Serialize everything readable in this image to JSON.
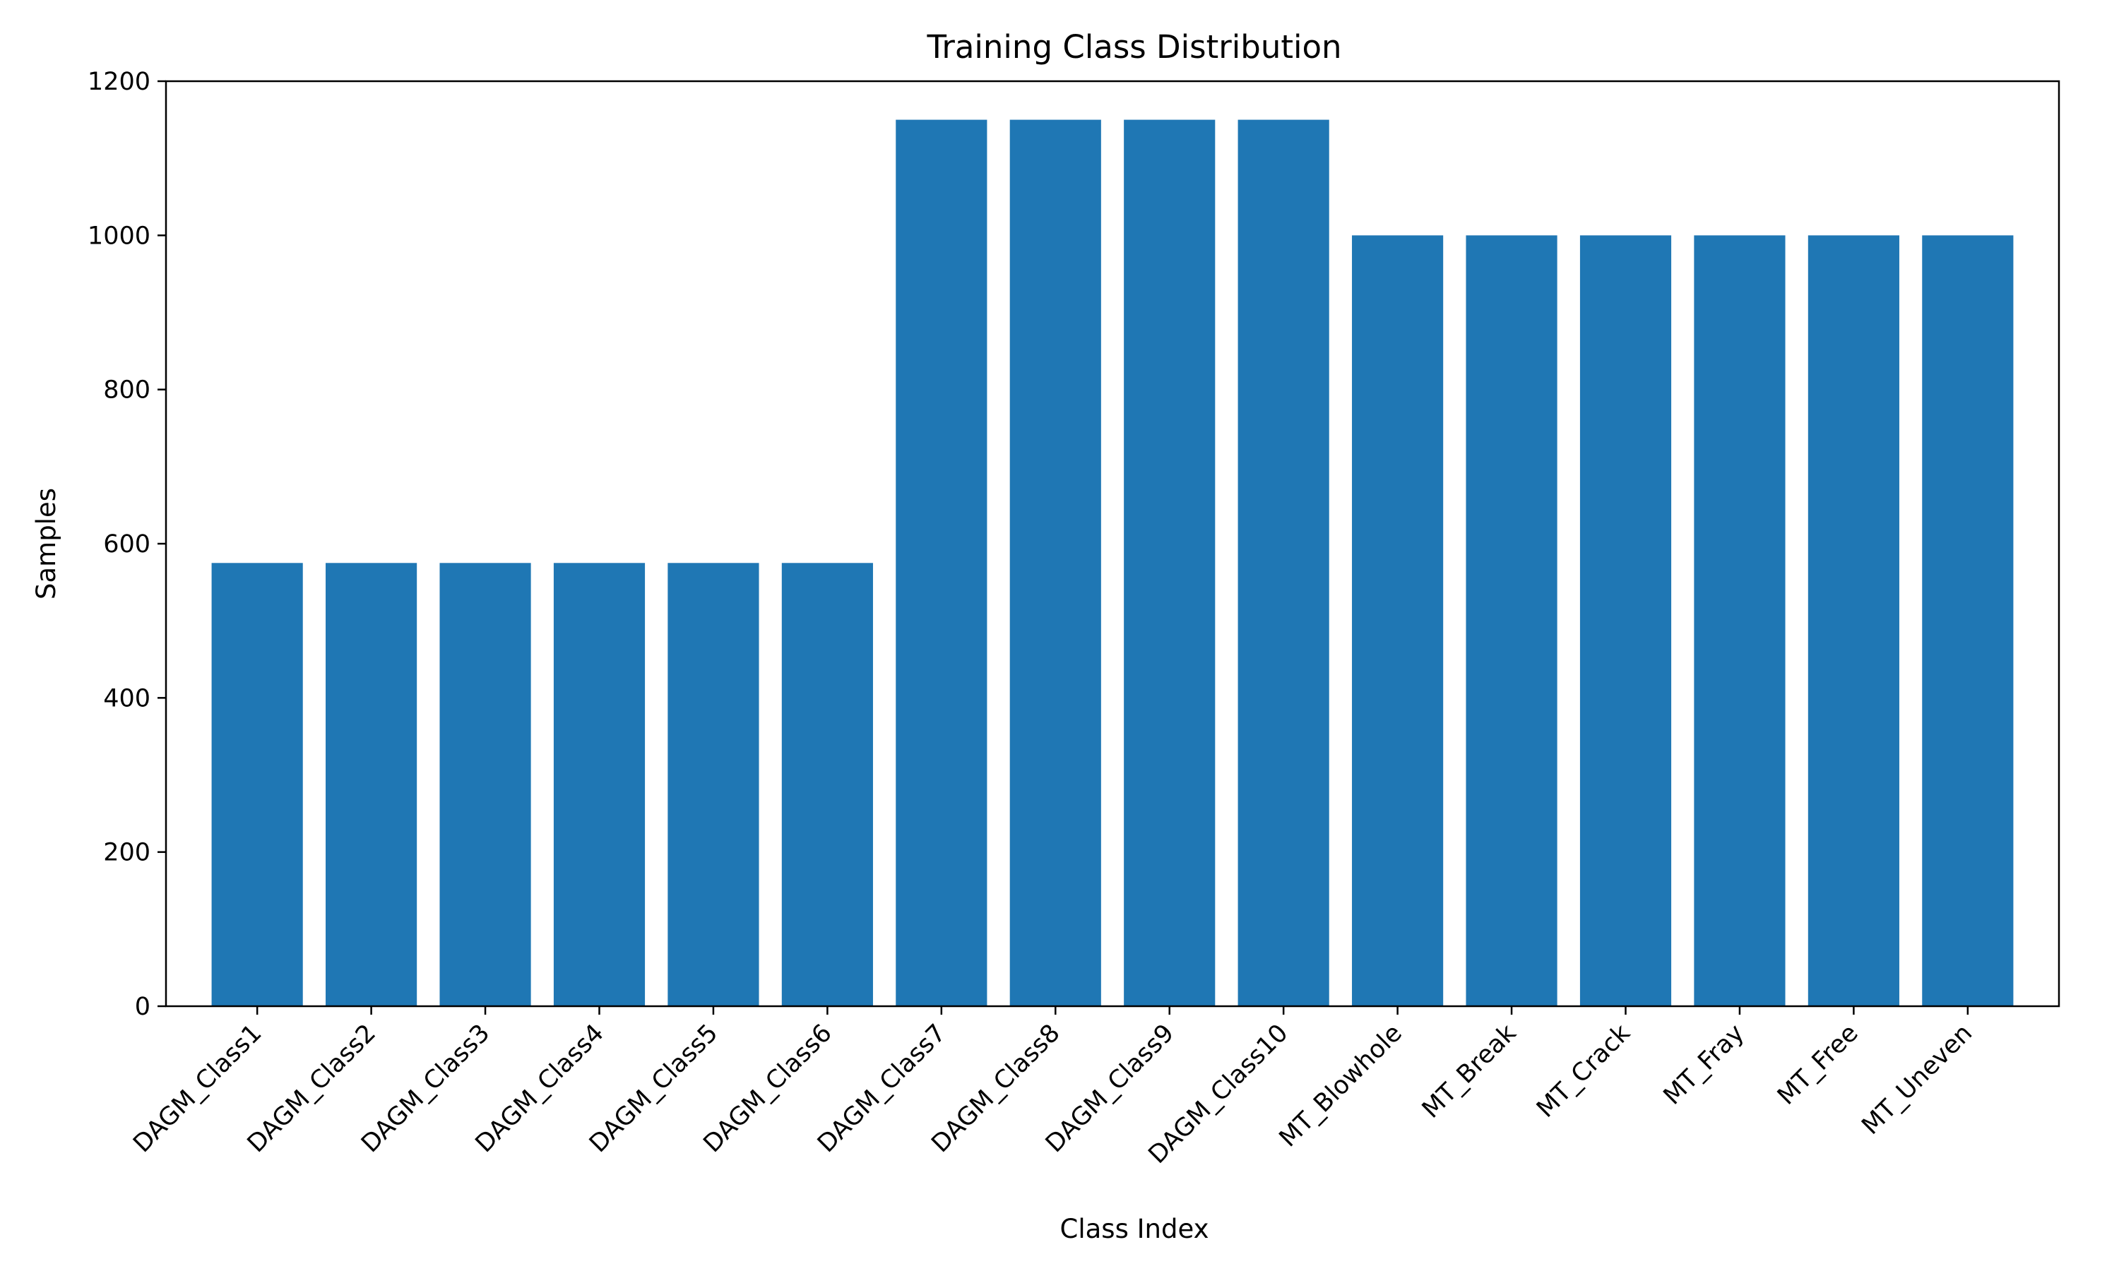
{
  "chart_data": {
    "type": "bar",
    "title": "Training Class Distribution",
    "xlabel": "Class Index",
    "ylabel": "Samples",
    "ylim": [
      0,
      1200
    ],
    "yticks": [
      0,
      200,
      400,
      600,
      800,
      1000,
      1200
    ],
    "grid": false,
    "legend": "none",
    "bar_color": "#1f77b4",
    "categories": [
      "DAGM_Class1",
      "DAGM_Class2",
      "DAGM_Class3",
      "DAGM_Class4",
      "DAGM_Class5",
      "DAGM_Class6",
      "DAGM_Class7",
      "DAGM_Class8",
      "DAGM_Class9",
      "DAGM_Class10",
      "MT_Blowhole",
      "MT_Break",
      "MT_Crack",
      "MT_Fray",
      "MT_Free",
      "MT_Uneven"
    ],
    "values": [
      575,
      575,
      575,
      575,
      575,
      575,
      1150,
      1150,
      1150,
      1150,
      1000,
      1000,
      1000,
      1000,
      1000,
      1000
    ]
  }
}
